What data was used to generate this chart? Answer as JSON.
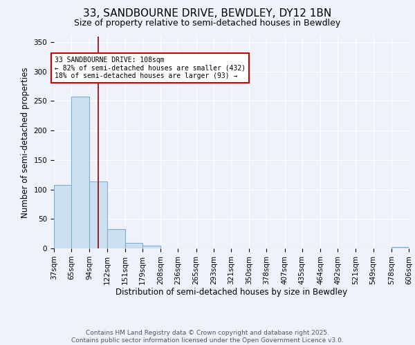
{
  "title": "33, SANDBOURNE DRIVE, BEWDLEY, DY12 1BN",
  "subtitle": "Size of property relative to semi-detached houses in Bewdley",
  "xlabel": "Distribution of semi-detached houses by size in Bewdley",
  "ylabel": "Number of semi-detached properties",
  "bins": [
    37,
    65,
    94,
    122,
    151,
    179,
    208,
    236,
    265,
    293,
    321,
    350,
    378,
    407,
    435,
    464,
    492,
    521,
    549,
    578,
    606
  ],
  "bar_heights": [
    108,
    257,
    113,
    33,
    9,
    5,
    0,
    0,
    0,
    0,
    0,
    0,
    0,
    0,
    0,
    0,
    0,
    0,
    0,
    2
  ],
  "bar_color": "#cce0f0",
  "bar_edge_color": "#7bafd4",
  "ylim": [
    0,
    360
  ],
  "yticks": [
    0,
    50,
    100,
    150,
    200,
    250,
    300,
    350
  ],
  "property_size": 108,
  "property_line_color": "#8b0000",
  "annotation_text": "33 SANDBOURNE DRIVE: 108sqm\n← 82% of semi-detached houses are smaller (432)\n18% of semi-detached houses are larger (93) →",
  "annotation_box_color": "#ffffff",
  "annotation_box_edgecolor": "#cc0000",
  "footer_line1": "Contains HM Land Registry data © Crown copyright and database right 2025.",
  "footer_line2": "Contains public sector information licensed under the Open Government Licence v3.0.",
  "background_color": "#eef2fb",
  "grid_color": "#ffffff",
  "title_fontsize": 11,
  "subtitle_fontsize": 9,
  "label_fontsize": 8.5,
  "tick_fontsize": 7.5,
  "footer_fontsize": 6.5
}
